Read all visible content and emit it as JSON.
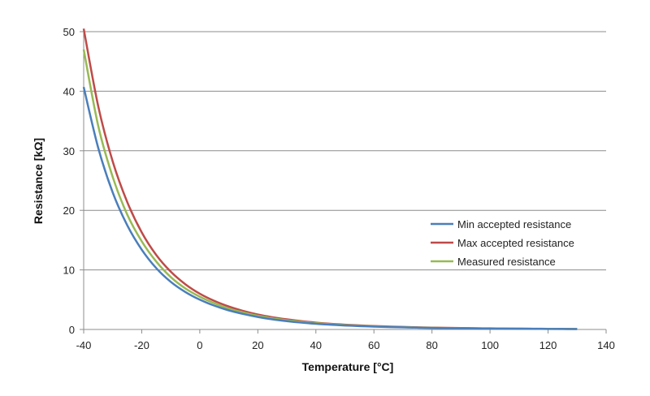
{
  "chart_data": {
    "type": "line",
    "title": "",
    "xlabel": "Temperature [°C]",
    "ylabel": "Resistance [kΩ]",
    "xlim": [
      -40,
      140
    ],
    "ylim": [
      0,
      50
    ],
    "xticks": [
      -40,
      -20,
      0,
      20,
      40,
      60,
      80,
      100,
      120,
      140
    ],
    "yticks": [
      0,
      10,
      20,
      30,
      40,
      50
    ],
    "grid": "horizontal",
    "legend_position": "center-right",
    "x": [
      -40,
      -35,
      -30,
      -25,
      -20,
      -15,
      -10,
      -5,
      0,
      5,
      10,
      15,
      20,
      25,
      30,
      35,
      40,
      45,
      50,
      55,
      60,
      65,
      70,
      75,
      80,
      85,
      90,
      95,
      100,
      105,
      110,
      115,
      120,
      125,
      130
    ],
    "series": [
      {
        "name": "Min accepted resistance",
        "color": "#4a7ebb",
        "values": [
          40.7,
          30.5,
          23.0,
          17.5,
          13.4,
          10.3,
          8.0,
          6.3,
          5.0,
          4.0,
          3.2,
          2.6,
          2.1,
          1.7,
          1.4,
          1.15,
          0.95,
          0.8,
          0.67,
          0.57,
          0.48,
          0.41,
          0.35,
          0.3,
          0.26,
          0.22,
          0.19,
          0.17,
          0.15,
          0.13,
          0.12,
          0.1,
          0.09,
          0.08,
          0.07
        ]
      },
      {
        "name": "Max accepted resistance",
        "color": "#be4b48",
        "values": [
          50.5,
          37.5,
          28.2,
          21.4,
          16.3,
          12.5,
          9.7,
          7.6,
          6.0,
          4.8,
          3.85,
          3.1,
          2.5,
          2.05,
          1.7,
          1.4,
          1.15,
          0.95,
          0.8,
          0.68,
          0.58,
          0.49,
          0.42,
          0.36,
          0.31,
          0.27,
          0.23,
          0.2,
          0.18,
          0.16,
          0.14,
          0.12,
          0.11,
          0.1,
          0.09
        ]
      },
      {
        "name": "Measured resistance",
        "color": "#98b954",
        "values": [
          47.0,
          34.2,
          25.6,
          19.3,
          14.8,
          11.4,
          8.8,
          6.9,
          5.5,
          4.4,
          3.5,
          2.85,
          2.3,
          1.88,
          1.55,
          1.28,
          1.05,
          0.88,
          0.74,
          0.62,
          0.53,
          0.45,
          0.38,
          0.33,
          0.28,
          0.24,
          0.21,
          0.18,
          0.16,
          0.14,
          0.13,
          0.11,
          0.1,
          0.09,
          0.08
        ]
      }
    ]
  }
}
